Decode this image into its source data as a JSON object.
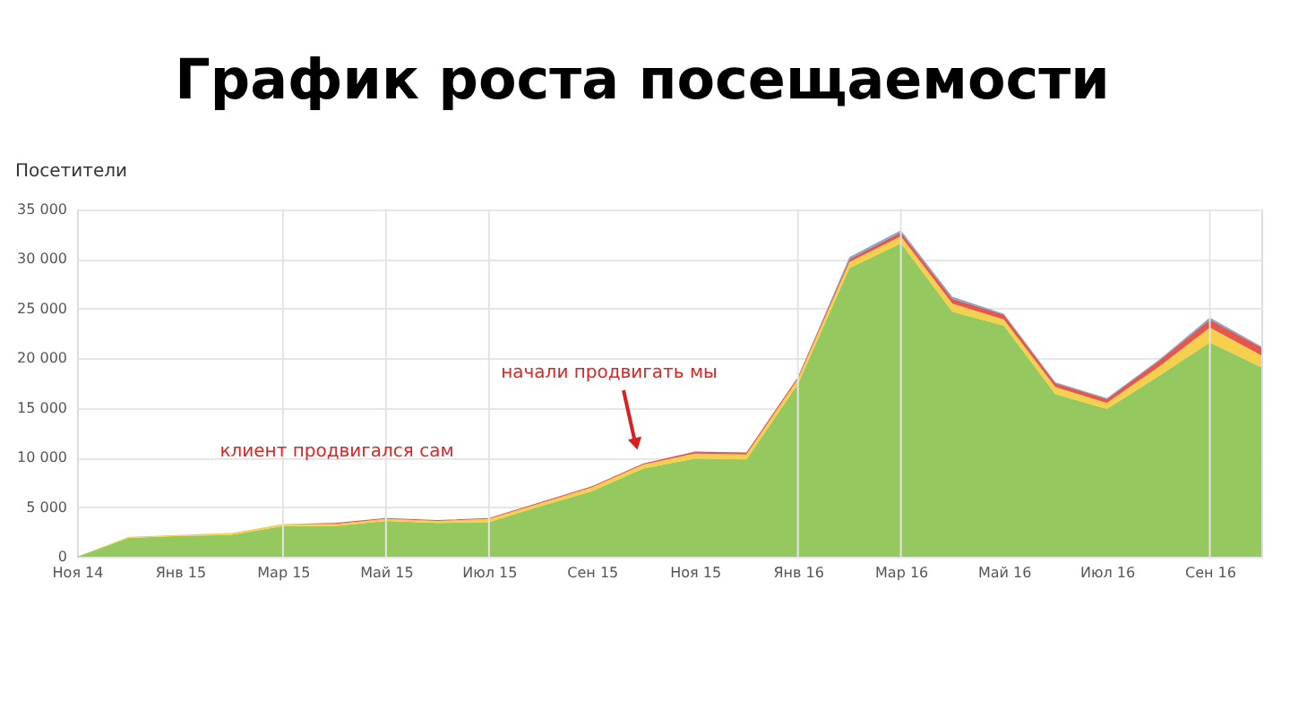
{
  "chart_data": {
    "type": "area",
    "title": "График роста посещаемости",
    "ylabel": "Посетители",
    "categories": [
      "Ноя 14",
      null,
      "Янв 15",
      null,
      "Мар 15",
      null,
      "Май 15",
      null,
      "Июл 15",
      null,
      "Сен 15",
      null,
      "Ноя 15",
      null,
      "Янв 16",
      null,
      "Мар 16",
      null,
      "Май 16",
      null,
      "Июл 16",
      null,
      "Сен 16",
      null
    ],
    "stacked": true,
    "series": [
      {
        "color": "#95c85f",
        "values": [
          0,
          1900,
          2100,
          2200,
          3100,
          3100,
          3600,
          3400,
          3500,
          5100,
          6600,
          8900,
          9900,
          9800,
          17400,
          29100,
          31600,
          24700,
          23300,
          16400,
          14900,
          18200,
          21600,
          19100
        ]
      },
      {
        "color": "#f5d04c",
        "values": [
          0,
          100,
          100,
          200,
          200,
          200,
          200,
          200,
          300,
          300,
          400,
          400,
          500,
          500,
          500,
          600,
          700,
          800,
          600,
          700,
          600,
          900,
          1500,
          1200
        ]
      },
      {
        "color": "#e3584b",
        "values": [
          0,
          0,
          0,
          0,
          0,
          100,
          100,
          100,
          100,
          100,
          100,
          100,
          200,
          200,
          200,
          300,
          400,
          500,
          500,
          400,
          400,
          600,
          800,
          800
        ]
      },
      {
        "color": "#7fa6d6",
        "values": [
          0,
          0,
          0,
          0,
          0,
          0,
          0,
          0,
          0,
          0,
          0,
          0,
          0,
          0,
          0,
          200,
          200,
          200,
          100,
          100,
          100,
          100,
          200,
          100
        ]
      }
    ],
    "ylim": [
      0,
      35000
    ],
    "yticks": [
      0,
      {
        "value": 5000,
        "label": "5 000"
      },
      {
        "value": 10000,
        "label": "10 000"
      },
      {
        "value": 15000,
        "label": "15 000"
      },
      {
        "value": 20000,
        "label": "20 000"
      },
      {
        "value": 25000,
        "label": "25 000"
      },
      {
        "value": 30000,
        "label": "30 000"
      },
      {
        "value": 35000,
        "label": "35 000"
      }
    ],
    "grid": "y",
    "ref_lines": [
      {
        "axis": "x",
        "value": "Мар 15",
        "color": "#e4e4e4"
      },
      {
        "axis": "x",
        "value": "Май 15",
        "color": "#e4e4e4"
      },
      {
        "axis": "x",
        "value": "Июл 15",
        "color": "#e4e4e4"
      },
      {
        "axis": "x",
        "value": "Янв 16",
        "color": "#e4e4e4"
      },
      {
        "axis": "x",
        "value": "Мар 16",
        "color": "#e4e4e4"
      },
      {
        "axis": "x",
        "value": "Сен 16",
        "color": "#e4e4e4"
      }
    ],
    "annotations": [
      "клиент продвигался сам",
      "начали продвигать мы"
    ]
  }
}
